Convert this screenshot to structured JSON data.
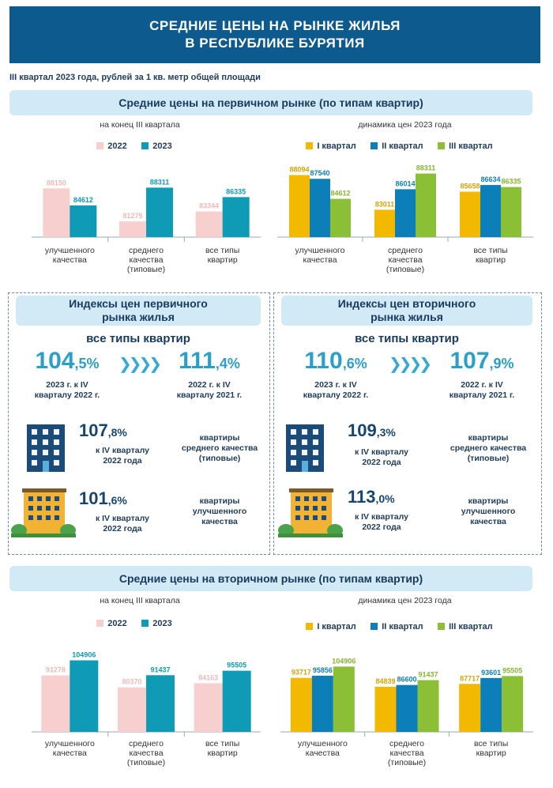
{
  "header": {
    "line1": "СРЕДНИЕ ЦЕНЫ НА РЫНКЕ ЖИЛЬЯ",
    "line2": "В РЕСПУБЛИКЕ БУРЯТИЯ"
  },
  "subtitle": "III квартал 2023 года, рублей за 1 кв. метр общей площади",
  "primary_section": {
    "title": "Средние цены на первичном рынке (по типам квартир)"
  },
  "secondary_section": {
    "title": "Средние цены на вторичном рынке (по типам квартир)"
  },
  "colors": {
    "y2022": "#f7cfcf",
    "y2023": "#0f9ab5",
    "q1": "#f3b800",
    "q2": "#0d7fb8",
    "q3": "#8bbf35",
    "accent": "#2a9fc9",
    "band": "#d2e9f6"
  },
  "chart_data": [
    {
      "type": "bar",
      "caption": "на конец III квартала",
      "categories": [
        "улучшенного\nкачества",
        "среднего\nкачества\n(типовые)",
        "все типы\nквартир"
      ],
      "series": [
        {
          "name": "2022",
          "values": [
            88150,
            81275,
            83344
          ],
          "color": "#f7cfcf",
          "label_color": "#f0b9b9"
        },
        {
          "name": "2023",
          "values": [
            84612,
            88311,
            86335
          ],
          "color": "#0f9ab5",
          "label_color": "#0f9ab5"
        }
      ],
      "ylim": [
        78000,
        92000
      ]
    },
    {
      "type": "bar",
      "caption": "динамика цен 2023 года",
      "categories": [
        "улучшенного\nкачества",
        "среднего\nкачества\n(типовые)",
        "все типы\nквартир"
      ],
      "series": [
        {
          "name": "I квартал",
          "values": [
            88094,
            83011,
            85658
          ],
          "color": "#f3b800",
          "label_color": "#d9a400"
        },
        {
          "name": "II квартал",
          "values": [
            87540,
            86014,
            86634
          ],
          "color": "#0d7fb8",
          "label_color": "#0d7fb8"
        },
        {
          "name": "III квартал",
          "values": [
            84612,
            88311,
            86335
          ],
          "color": "#8bbf35",
          "label_color": "#86b52f"
        }
      ],
      "ylim": [
        79000,
        90000
      ]
    },
    {
      "type": "bar",
      "caption": "на конец III квартала",
      "categories": [
        "улучшенного\nкачества",
        "среднего\nкачества\n(типовые)",
        "все типы\nквартир"
      ],
      "series": [
        {
          "name": "2022",
          "values": [
            91278,
            80370,
            84163
          ],
          "color": "#f7cfcf",
          "label_color": "#f0b9b9"
        },
        {
          "name": "2023",
          "values": [
            104906,
            91437,
            95505
          ],
          "color": "#0f9ab5",
          "label_color": "#0f9ab5"
        }
      ],
      "ylim": [
        40000,
        106000
      ]
    },
    {
      "type": "bar",
      "caption": "динамика цен 2023 года",
      "categories": [
        "улучшенного\nкачества",
        "среднего\nкачества\n(типовые)",
        "все типы\nквартир"
      ],
      "series": [
        {
          "name": "I квартал",
          "values": [
            93717,
            84839,
            87717
          ],
          "color": "#f3b800",
          "label_color": "#d9a400"
        },
        {
          "name": "II квартал",
          "values": [
            95856,
            86600,
            93601
          ],
          "color": "#0d7fb8",
          "label_color": "#0d7fb8"
        },
        {
          "name": "III квартал",
          "values": [
            104906,
            91437,
            95505
          ],
          "color": "#8bbf35",
          "label_color": "#86b52f"
        }
      ],
      "ylim": [
        40000,
        106000
      ]
    }
  ],
  "indices": {
    "primary": {
      "title_line1": "Индексы цен первичного",
      "title_line2": "рынка жилья",
      "all_types_label": "все типы квартир",
      "idx1_int": "104",
      "idx1_dec": ",5%",
      "idx1_cap1": "2023 г. к IV",
      "idx1_cap2": "кварталу 2022 г.",
      "idx2_int": "111",
      "idx2_dec": ",4%",
      "idx2_cap1": "2022 г. к IV",
      "idx2_cap2": "кварталу 2021 г.",
      "row1_int": "107",
      "row1_dec": ",8%",
      "row1_cap1": "к IV кварталу",
      "row1_cap2": "2022 года",
      "row1_lbl1": "квартиры",
      "row1_lbl2": "среднего качества",
      "row1_lbl3": "(типовые)",
      "row2_int": "101",
      "row2_dec": ",6%",
      "row2_cap1": "к IV кварталу",
      "row2_cap2": "2022 года",
      "row2_lbl1": "квартиры",
      "row2_lbl2": "улучшенного",
      "row2_lbl3": "качества"
    },
    "secondary": {
      "title_line1": "Индексы цен вторичного",
      "title_line2": "рынка жилья",
      "all_types_label": "все типы квартир",
      "idx1_int": "110",
      "idx1_dec": ",6%",
      "idx1_cap1": "2023 г. к IV",
      "idx1_cap2": "кварталу 2022 г.",
      "idx2_int": "107",
      "idx2_dec": ",9%",
      "idx2_cap1": "2022 г. к IV",
      "idx2_cap2": "кварталу 2021 г.",
      "row1_int": "109",
      "row1_dec": ",3%",
      "row1_cap1": "к IV кварталу",
      "row1_cap2": "2022 года",
      "row1_lbl1": "квартиры",
      "row1_lbl2": "среднего качества",
      "row1_lbl3": "(типовые)",
      "row2_int": "113",
      "row2_dec": ",0%",
      "row2_cap1": "к IV кварталу",
      "row2_cap2": "2022 года",
      "row2_lbl1": "квартиры",
      "row2_lbl2": "улучшенного",
      "row2_lbl3": "качества"
    }
  }
}
